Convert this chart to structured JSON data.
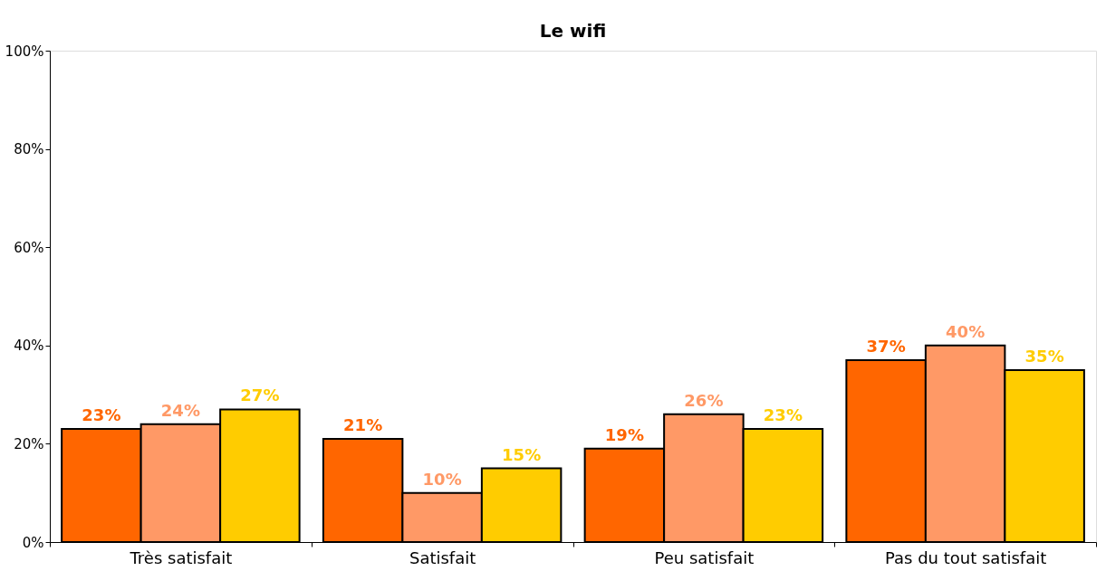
{
  "chart_data": {
    "type": "bar",
    "title": "Le wifi",
    "categories": [
      "Très satisfait",
      "Satisfait",
      "Peu satisfait",
      "Pas du tout satisfait"
    ],
    "series": [
      {
        "color": "#ff6600",
        "values": [
          23,
          21,
          19,
          37
        ],
        "value_labels": [
          "23%",
          "21%",
          "19%",
          "37%"
        ]
      },
      {
        "color": "#ff9966",
        "values": [
          24,
          10,
          26,
          40
        ],
        "value_labels": [
          "24%",
          "10%",
          "26%",
          "40%"
        ]
      },
      {
        "color": "#ffcc00",
        "values": [
          27,
          15,
          23,
          35
        ],
        "value_labels": [
          "27%",
          "15%",
          "23%",
          "35%"
        ]
      }
    ],
    "ylim": [
      0,
      100
    ],
    "yticks": [
      {
        "value": 0,
        "label": "0%"
      },
      {
        "value": 20,
        "label": "20%"
      },
      {
        "value": 40,
        "label": "40%"
      },
      {
        "value": 60,
        "label": "60%"
      },
      {
        "value": 80,
        "label": "80%"
      },
      {
        "value": 100,
        "label": "100%"
      }
    ],
    "grid": false,
    "legend": false
  }
}
